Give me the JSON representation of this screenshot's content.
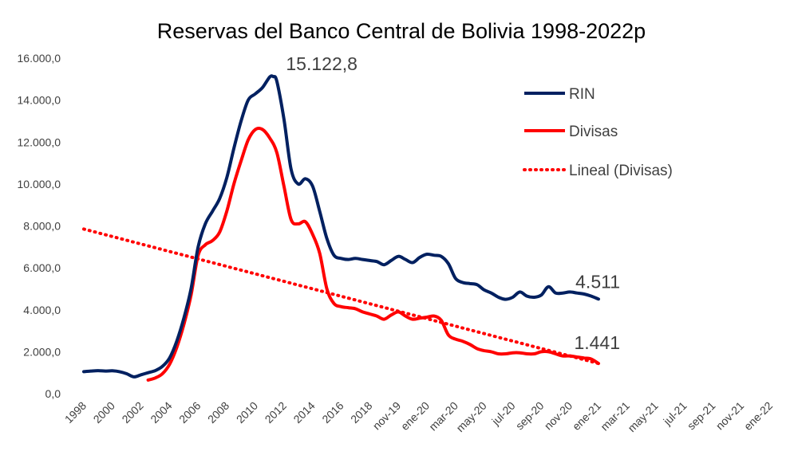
{
  "chart_data": {
    "type": "line",
    "title": "Reservas del Banco Central de Bolivia 1998-2022p",
    "xlabel": "",
    "ylabel": "",
    "ylim": [
      0,
      16000
    ],
    "y_tick_labels": [
      "0,0",
      "2.000,0",
      "4.000,0",
      "6.000,0",
      "8.000,0",
      "10.000,0",
      "12.000,0",
      "14.000,0",
      "16.000,0"
    ],
    "x_tick_labels": [
      "1998",
      "2000",
      "2002",
      "2004",
      "2006",
      "2008",
      "2010",
      "2012",
      "2014",
      "2016",
      "2018",
      "nov-19",
      "ene-20",
      "mar-20",
      "may-20",
      "jul-20",
      "sep-20",
      "nov-20",
      "ene-21",
      "mar-21",
      "may-21",
      "jul-21",
      "sep-21",
      "nov-21",
      "ene-22"
    ],
    "grid": false,
    "legend_position": "top-right",
    "series": [
      {
        "name": "RIN",
        "color": "#002060",
        "style": "solid",
        "points": [
          [
            0,
            1050
          ],
          [
            0.5,
            1080
          ],
          [
            1,
            1100
          ],
          [
            1.5,
            1080
          ],
          [
            2,
            1090
          ],
          [
            2.5,
            1050
          ],
          [
            3,
            950
          ],
          [
            3.5,
            800
          ],
          [
            4,
            900
          ],
          [
            4.5,
            1000
          ],
          [
            5,
            1100
          ],
          [
            5.5,
            1300
          ],
          [
            6,
            1700
          ],
          [
            6.5,
            2500
          ],
          [
            7,
            3600
          ],
          [
            7.5,
            5000
          ],
          [
            8,
            7000
          ],
          [
            8.5,
            8100
          ],
          [
            9,
            8700
          ],
          [
            9.5,
            9300
          ],
          [
            10,
            10300
          ],
          [
            10.5,
            11700
          ],
          [
            11,
            13000
          ],
          [
            11.5,
            14000
          ],
          [
            12,
            14300
          ],
          [
            12.5,
            14600
          ],
          [
            13,
            15100
          ],
          [
            13.25,
            15122.8
          ],
          [
            13.5,
            14900
          ],
          [
            14,
            13100
          ],
          [
            14.5,
            10700
          ],
          [
            15,
            10000
          ],
          [
            15.5,
            10250
          ],
          [
            16,
            9900
          ],
          [
            16.5,
            8700
          ],
          [
            17,
            7400
          ],
          [
            17.5,
            6600
          ],
          [
            18,
            6450
          ],
          [
            18.5,
            6400
          ],
          [
            19,
            6450
          ],
          [
            19.5,
            6400
          ],
          [
            20,
            6350
          ],
          [
            20.5,
            6300
          ],
          [
            21,
            6150
          ],
          [
            21.5,
            6350
          ],
          [
            22,
            6550
          ],
          [
            22.5,
            6400
          ],
          [
            23,
            6250
          ],
          [
            23.5,
            6500
          ],
          [
            24,
            6650
          ],
          [
            24.5,
            6600
          ],
          [
            25,
            6550
          ],
          [
            25.5,
            6200
          ],
          [
            26,
            5500
          ],
          [
            26.5,
            5300
          ],
          [
            27,
            5250
          ],
          [
            27.5,
            5200
          ],
          [
            28,
            4950
          ],
          [
            28.5,
            4800
          ],
          [
            29,
            4600
          ],
          [
            29.5,
            4500
          ],
          [
            30,
            4600
          ],
          [
            30.5,
            4850
          ],
          [
            31,
            4650
          ],
          [
            31.5,
            4600
          ],
          [
            32,
            4700
          ],
          [
            32.5,
            5100
          ],
          [
            33,
            4800
          ],
          [
            33.5,
            4800
          ],
          [
            34,
            4850
          ],
          [
            34.5,
            4800
          ],
          [
            35,
            4750
          ],
          [
            35.5,
            4650
          ],
          [
            36,
            4511
          ]
        ]
      },
      {
        "name": "Divisas",
        "color": "#ff0000",
        "style": "solid",
        "points": [
          [
            4.5,
            650
          ],
          [
            5,
            750
          ],
          [
            5.5,
            950
          ],
          [
            6,
            1400
          ],
          [
            6.5,
            2200
          ],
          [
            7,
            3300
          ],
          [
            7.5,
            4700
          ],
          [
            8,
            6600
          ],
          [
            8.5,
            7100
          ],
          [
            9,
            7300
          ],
          [
            9.5,
            7700
          ],
          [
            10,
            8700
          ],
          [
            10.5,
            10000
          ],
          [
            11,
            11100
          ],
          [
            11.5,
            12100
          ],
          [
            12,
            12600
          ],
          [
            12.5,
            12600
          ],
          [
            13,
            12200
          ],
          [
            13.5,
            11500
          ],
          [
            14,
            9900
          ],
          [
            14.5,
            8300
          ],
          [
            15,
            8100
          ],
          [
            15.5,
            8200
          ],
          [
            16,
            7600
          ],
          [
            16.5,
            6700
          ],
          [
            17,
            5000
          ],
          [
            17.5,
            4300
          ],
          [
            18,
            4150
          ],
          [
            18.5,
            4100
          ],
          [
            19,
            4050
          ],
          [
            19.5,
            3900
          ],
          [
            20,
            3800
          ],
          [
            20.5,
            3700
          ],
          [
            21,
            3550
          ],
          [
            21.5,
            3750
          ],
          [
            22,
            3900
          ],
          [
            22.5,
            3700
          ],
          [
            23,
            3550
          ],
          [
            23.5,
            3600
          ],
          [
            24,
            3650
          ],
          [
            24.5,
            3700
          ],
          [
            25,
            3500
          ],
          [
            25.5,
            2800
          ],
          [
            26,
            2600
          ],
          [
            26.5,
            2500
          ],
          [
            27,
            2350
          ],
          [
            27.5,
            2150
          ],
          [
            28,
            2050
          ],
          [
            28.5,
            2000
          ],
          [
            29,
            1900
          ],
          [
            29.5,
            1900
          ],
          [
            30,
            1950
          ],
          [
            30.5,
            1950
          ],
          [
            31,
            1900
          ],
          [
            31.5,
            1900
          ],
          [
            32,
            2000
          ],
          [
            32.5,
            2000
          ],
          [
            33,
            1900
          ],
          [
            33.5,
            1800
          ],
          [
            34,
            1800
          ],
          [
            34.5,
            1750
          ],
          [
            35,
            1700
          ],
          [
            35.5,
            1650
          ],
          [
            36,
            1441
          ]
        ]
      },
      {
        "name": "Lineal (Divisas)",
        "color": "#ff0000",
        "style": "dotted",
        "points": [
          [
            0,
            7850
          ],
          [
            36,
            1441
          ]
        ]
      }
    ],
    "annotations": [
      {
        "text": "15.122,8",
        "x": 13.25,
        "y": 15122.8
      },
      {
        "text": "4.511",
        "x": 36,
        "y": 4511
      },
      {
        "text": "1.441",
        "x": 36,
        "y": 1441
      }
    ]
  }
}
